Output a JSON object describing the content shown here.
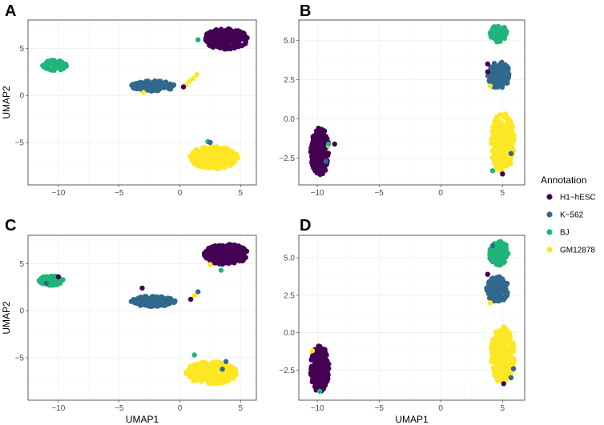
{
  "chart_data": [
    {
      "type": "scatter",
      "panel": "A",
      "title": "A",
      "xlabel": "",
      "ylabel": "UMAP2",
      "xlim": [
        -12.5,
        6.3
      ],
      "ylim": [
        -9.5,
        8.0
      ],
      "xticks": [
        -10,
        -5,
        0,
        5
      ],
      "yticks": [
        -5,
        0,
        5
      ],
      "clusters": [
        {
          "label": "H1-hESC",
          "cx": 3.8,
          "cy": 6.0,
          "rx": 1.8,
          "ry": 1.1,
          "n": 240,
          "seed": 11
        },
        {
          "label": "K-562",
          "cx": -2.2,
          "cy": 1.0,
          "rx": 1.8,
          "ry": 0.55,
          "n": 150,
          "seed": 12
        },
        {
          "label": "BJ",
          "cx": -10.3,
          "cy": 3.2,
          "rx": 1.0,
          "ry": 0.55,
          "n": 80,
          "seed": 13
        },
        {
          "label": "GM12878",
          "cx": 2.8,
          "cy": -6.6,
          "rx": 2.0,
          "ry": 1.2,
          "n": 260,
          "seed": 14
        }
      ],
      "extra_points": [
        {
          "label": "BJ",
          "x": 1.5,
          "y": 5.9
        },
        {
          "label": "GM12878",
          "x": 0.5,
          "y": 1.1
        },
        {
          "label": "GM12878",
          "x": 1.4,
          "y": 2.2
        },
        {
          "label": "GM12878",
          "x": 1.1,
          "y": 1.8
        },
        {
          "label": "H1-hESC",
          "x": 0.3,
          "y": 0.9
        },
        {
          "label": "BJ",
          "x": 2.3,
          "y": -4.9
        },
        {
          "label": "K-562",
          "x": 2.5,
          "y": -5.0
        },
        {
          "label": "GM12878",
          "x": -3.0,
          "y": 0.3
        },
        {
          "label": "GM12878",
          "x": 0.8,
          "y": 1.5
        }
      ]
    },
    {
      "type": "scatter",
      "panel": "B",
      "title": "B",
      "xlabel": "",
      "ylabel": "",
      "xlim": [
        -11.5,
        6.8
      ],
      "ylim": [
        -4.2,
        6.3
      ],
      "xticks": [
        -10,
        -5,
        0,
        5
      ],
      "yticks": [
        -2.5,
        0.0,
        2.5,
        5.0
      ],
      "clusters": [
        {
          "label": "H1-hESC",
          "cx": -9.8,
          "cy": -2.1,
          "rx": 0.75,
          "ry": 1.55,
          "n": 200,
          "seed": 21
        },
        {
          "label": "BJ",
          "cx": 4.7,
          "cy": 5.4,
          "rx": 0.75,
          "ry": 0.55,
          "n": 90,
          "seed": 22
        },
        {
          "label": "K-562",
          "cx": 4.7,
          "cy": 2.8,
          "rx": 0.9,
          "ry": 0.85,
          "n": 120,
          "seed": 23
        },
        {
          "label": "GM12878",
          "cx": 5.0,
          "cy": -1.5,
          "rx": 0.95,
          "ry": 1.9,
          "n": 240,
          "seed": 24
        }
      ],
      "extra_points": [
        {
          "label": "H1-hESC",
          "x": 3.8,
          "y": 3.5
        },
        {
          "label": "H1-hESC",
          "x": 3.8,
          "y": 3.0
        },
        {
          "label": "GM12878",
          "x": 4.0,
          "y": 2.1
        },
        {
          "label": "H1-hESC",
          "x": -8.6,
          "y": -1.6
        },
        {
          "label": "GM12878",
          "x": -9.1,
          "y": -1.7
        },
        {
          "label": "BJ",
          "x": -9.1,
          "y": -1.6
        },
        {
          "label": "K-562",
          "x": -9.3,
          "y": -2.7
        },
        {
          "label": "H1-hESC",
          "x": 5.0,
          "y": -3.5
        },
        {
          "label": "BJ",
          "x": 4.2,
          "y": -3.3
        },
        {
          "label": "K-562",
          "x": 5.7,
          "y": -2.2
        }
      ]
    },
    {
      "type": "scatter",
      "panel": "C",
      "title": "C",
      "xlabel": "UMAP1",
      "ylabel": "UMAP2",
      "xlim": [
        -12.5,
        6.3
      ],
      "ylim": [
        -9.5,
        8.0
      ],
      "xticks": [
        -10,
        -5,
        0,
        5
      ],
      "yticks": [
        -5,
        0,
        5
      ],
      "clusters": [
        {
          "label": "H1-hESC",
          "cx": 3.8,
          "cy": 6.0,
          "rx": 1.8,
          "ry": 1.1,
          "n": 240,
          "seed": 31
        },
        {
          "label": "K-562",
          "cx": -2.2,
          "cy": 1.0,
          "rx": 1.8,
          "ry": 0.55,
          "n": 150,
          "seed": 32
        },
        {
          "label": "BJ",
          "cx": -10.6,
          "cy": 3.2,
          "rx": 1.0,
          "ry": 0.5,
          "n": 80,
          "seed": 33
        },
        {
          "label": "GM12878",
          "cx": 2.6,
          "cy": -6.6,
          "rx": 2.1,
          "ry": 1.2,
          "n": 260,
          "seed": 34
        }
      ],
      "extra_points": [
        {
          "label": "H1-hESC",
          "x": -10.0,
          "y": 3.6
        },
        {
          "label": "K-562",
          "x": -11.0,
          "y": 2.9
        },
        {
          "label": "H1-hESC",
          "x": -3.1,
          "y": 2.4
        },
        {
          "label": "K-562",
          "x": 1.5,
          "y": 2.0
        },
        {
          "label": "GM12878",
          "x": 1.2,
          "y": 1.6
        },
        {
          "label": "H1-hESC",
          "x": 0.9,
          "y": 1.2
        },
        {
          "label": "BJ",
          "x": 3.4,
          "y": 4.3
        },
        {
          "label": "GM12878",
          "x": 2.5,
          "y": 4.9
        },
        {
          "label": "BJ",
          "x": 1.2,
          "y": -4.7
        },
        {
          "label": "K-562",
          "x": 3.5,
          "y": -6.2
        },
        {
          "label": "K-562",
          "x": 3.8,
          "y": -5.4
        }
      ]
    },
    {
      "type": "scatter",
      "panel": "D",
      "title": "D",
      "xlabel": "UMAP1",
      "ylabel": "",
      "xlim": [
        -11.5,
        6.8
      ],
      "ylim": [
        -4.5,
        6.5
      ],
      "xticks": [
        -10,
        -5,
        0,
        5
      ],
      "yticks": [
        -2.5,
        0.0,
        2.5,
        5.0
      ],
      "clusters": [
        {
          "label": "H1-hESC",
          "cx": -9.8,
          "cy": -2.4,
          "rx": 0.75,
          "ry": 1.55,
          "n": 200,
          "seed": 41
        },
        {
          "label": "BJ",
          "cx": 4.7,
          "cy": 5.3,
          "rx": 0.8,
          "ry": 0.8,
          "n": 110,
          "seed": 42
        },
        {
          "label": "K-562",
          "cx": 4.6,
          "cy": 2.9,
          "rx": 0.9,
          "ry": 0.85,
          "n": 120,
          "seed": 43
        },
        {
          "label": "GM12878",
          "cx": 5.0,
          "cy": -1.5,
          "rx": 0.95,
          "ry": 1.9,
          "n": 240,
          "seed": 44
        }
      ],
      "extra_points": [
        {
          "label": "GM12878",
          "x": -10.4,
          "y": -1.2
        },
        {
          "label": "BJ",
          "x": -9.8,
          "y": -3.9
        },
        {
          "label": "K-562",
          "x": 4.2,
          "y": 5.8
        },
        {
          "label": "H1-hESC",
          "x": 3.8,
          "y": 3.9
        },
        {
          "label": "GM12878",
          "x": 4.0,
          "y": 2.0
        },
        {
          "label": "K-562",
          "x": 5.9,
          "y": -2.4
        },
        {
          "label": "K-562",
          "x": 5.7,
          "y": -3.0
        },
        {
          "label": "H1-hESC",
          "x": 5.1,
          "y": -3.4
        }
      ]
    }
  ],
  "legend": {
    "title": "Annotation",
    "items": [
      {
        "label": "H1−hESC",
        "key": "H1-hESC",
        "color": "#440154"
      },
      {
        "label": "K−562",
        "key": "K-562",
        "color": "#31688e"
      },
      {
        "label": "BJ",
        "key": "BJ",
        "color": "#1fb47a"
      },
      {
        "label": "GM12878",
        "key": "GM12878",
        "color": "#fde725"
      }
    ]
  }
}
